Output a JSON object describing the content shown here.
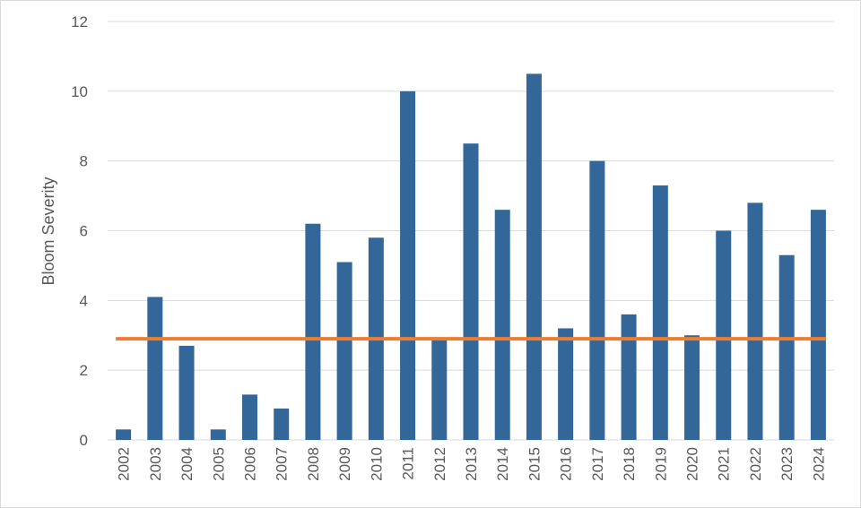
{
  "chart_data": {
    "type": "bar",
    "ylabel": "Bloom Severity",
    "xlabel": "",
    "ylim": [
      0,
      12
    ],
    "yticks": [
      0,
      2,
      4,
      6,
      8,
      10,
      12
    ],
    "grid": true,
    "categories": [
      "2002",
      "2003",
      "2004",
      "2005",
      "2006",
      "2007",
      "2008",
      "2009",
      "2010",
      "2011",
      "2012",
      "2013",
      "2014",
      "2015",
      "2016",
      "2017",
      "2018",
      "2019",
      "2020",
      "2021",
      "2022",
      "2023",
      "2024"
    ],
    "values": [
      0.3,
      4.1,
      2.7,
      0.3,
      1.3,
      0.9,
      6.2,
      5.1,
      5.8,
      10.0,
      2.9,
      8.5,
      6.6,
      10.5,
      3.2,
      8.0,
      3.6,
      7.3,
      3.0,
      6.0,
      6.8,
      5.3,
      6.6
    ],
    "reference_line": {
      "value": 2.9
    },
    "colors": {
      "bar": "#336699",
      "reference": "#ED7D31",
      "grid": "#d9d9d9",
      "text": "#595959"
    }
  }
}
